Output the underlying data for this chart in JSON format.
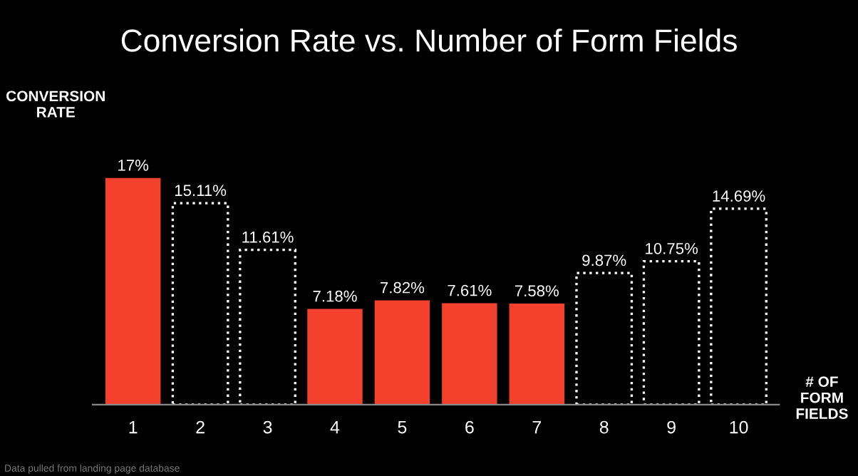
{
  "chart_data": {
    "type": "bar",
    "title": "Conversion Rate vs. Number of Form Fields",
    "ylabel": "CONVERSION\nRATE",
    "xlabel": "# OF\nFORM\nFIELDS",
    "categories": [
      "1",
      "2",
      "3",
      "4",
      "5",
      "6",
      "7",
      "8",
      "9",
      "10"
    ],
    "series": [
      {
        "color": "#f4412d",
        "line_style": "solid",
        "values": [
          17,
          null,
          null,
          7.18,
          7.82,
          7.61,
          7.58,
          null,
          null,
          null
        ],
        "value_labels": [
          "17%",
          null,
          null,
          "7.18%",
          "7.82%",
          "7.61%",
          "7.58%",
          null,
          null,
          null
        ]
      },
      {
        "color": "#ffffff",
        "line_style": "dotted",
        "values": [
          null,
          15.11,
          11.61,
          null,
          null,
          null,
          null,
          9.87,
          10.75,
          14.69
        ],
        "value_labels": [
          null,
          "15.11%",
          "11.61%",
          null,
          null,
          null,
          null,
          "9.87%",
          "10.75%",
          "14.69%"
        ]
      }
    ],
    "annotations": [
      "Data pulled from landing page database"
    ],
    "grid": false
  }
}
